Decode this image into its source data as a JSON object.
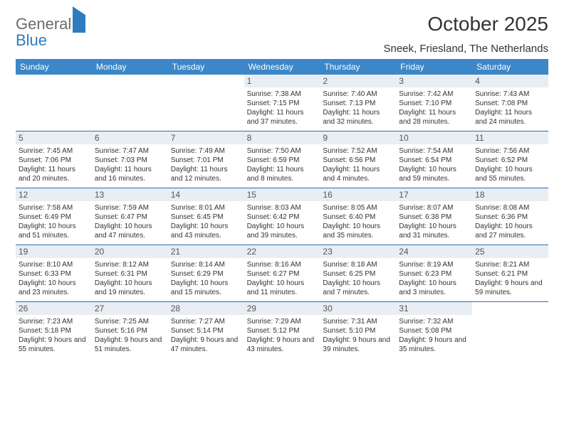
{
  "logo": {
    "line1": "General",
    "line2": "Blue"
  },
  "title": "October 2025",
  "location": "Sneek, Friesland, The Netherlands",
  "colors": {
    "header_bg": "#3b87c8",
    "header_text": "#ffffff",
    "daynum_bg": "#e8eef3",
    "week_border": "#2f6ea8",
    "logo_gray": "#6b6b6b",
    "logo_blue": "#2f7bbf"
  },
  "typography": {
    "title_fontsize": 28,
    "location_fontsize": 15,
    "dayheader_fontsize": 12,
    "daynum_fontsize": 12,
    "info_fontsize": 10
  },
  "day_names": [
    "Sunday",
    "Monday",
    "Tuesday",
    "Wednesday",
    "Thursday",
    "Friday",
    "Saturday"
  ],
  "weeks": [
    [
      {
        "n": "",
        "sunrise": "",
        "sunset": "",
        "daylight": ""
      },
      {
        "n": "",
        "sunrise": "",
        "sunset": "",
        "daylight": ""
      },
      {
        "n": "",
        "sunrise": "",
        "sunset": "",
        "daylight": ""
      },
      {
        "n": "1",
        "sunrise": "Sunrise: 7:38 AM",
        "sunset": "Sunset: 7:15 PM",
        "daylight": "Daylight: 11 hours and 37 minutes."
      },
      {
        "n": "2",
        "sunrise": "Sunrise: 7:40 AM",
        "sunset": "Sunset: 7:13 PM",
        "daylight": "Daylight: 11 hours and 32 minutes."
      },
      {
        "n": "3",
        "sunrise": "Sunrise: 7:42 AM",
        "sunset": "Sunset: 7:10 PM",
        "daylight": "Daylight: 11 hours and 28 minutes."
      },
      {
        "n": "4",
        "sunrise": "Sunrise: 7:43 AM",
        "sunset": "Sunset: 7:08 PM",
        "daylight": "Daylight: 11 hours and 24 minutes."
      }
    ],
    [
      {
        "n": "5",
        "sunrise": "Sunrise: 7:45 AM",
        "sunset": "Sunset: 7:06 PM",
        "daylight": "Daylight: 11 hours and 20 minutes."
      },
      {
        "n": "6",
        "sunrise": "Sunrise: 7:47 AM",
        "sunset": "Sunset: 7:03 PM",
        "daylight": "Daylight: 11 hours and 16 minutes."
      },
      {
        "n": "7",
        "sunrise": "Sunrise: 7:49 AM",
        "sunset": "Sunset: 7:01 PM",
        "daylight": "Daylight: 11 hours and 12 minutes."
      },
      {
        "n": "8",
        "sunrise": "Sunrise: 7:50 AM",
        "sunset": "Sunset: 6:59 PM",
        "daylight": "Daylight: 11 hours and 8 minutes."
      },
      {
        "n": "9",
        "sunrise": "Sunrise: 7:52 AM",
        "sunset": "Sunset: 6:56 PM",
        "daylight": "Daylight: 11 hours and 4 minutes."
      },
      {
        "n": "10",
        "sunrise": "Sunrise: 7:54 AM",
        "sunset": "Sunset: 6:54 PM",
        "daylight": "Daylight: 10 hours and 59 minutes."
      },
      {
        "n": "11",
        "sunrise": "Sunrise: 7:56 AM",
        "sunset": "Sunset: 6:52 PM",
        "daylight": "Daylight: 10 hours and 55 minutes."
      }
    ],
    [
      {
        "n": "12",
        "sunrise": "Sunrise: 7:58 AM",
        "sunset": "Sunset: 6:49 PM",
        "daylight": "Daylight: 10 hours and 51 minutes."
      },
      {
        "n": "13",
        "sunrise": "Sunrise: 7:59 AM",
        "sunset": "Sunset: 6:47 PM",
        "daylight": "Daylight: 10 hours and 47 minutes."
      },
      {
        "n": "14",
        "sunrise": "Sunrise: 8:01 AM",
        "sunset": "Sunset: 6:45 PM",
        "daylight": "Daylight: 10 hours and 43 minutes."
      },
      {
        "n": "15",
        "sunrise": "Sunrise: 8:03 AM",
        "sunset": "Sunset: 6:42 PM",
        "daylight": "Daylight: 10 hours and 39 minutes."
      },
      {
        "n": "16",
        "sunrise": "Sunrise: 8:05 AM",
        "sunset": "Sunset: 6:40 PM",
        "daylight": "Daylight: 10 hours and 35 minutes."
      },
      {
        "n": "17",
        "sunrise": "Sunrise: 8:07 AM",
        "sunset": "Sunset: 6:38 PM",
        "daylight": "Daylight: 10 hours and 31 minutes."
      },
      {
        "n": "18",
        "sunrise": "Sunrise: 8:08 AM",
        "sunset": "Sunset: 6:36 PM",
        "daylight": "Daylight: 10 hours and 27 minutes."
      }
    ],
    [
      {
        "n": "19",
        "sunrise": "Sunrise: 8:10 AM",
        "sunset": "Sunset: 6:33 PM",
        "daylight": "Daylight: 10 hours and 23 minutes."
      },
      {
        "n": "20",
        "sunrise": "Sunrise: 8:12 AM",
        "sunset": "Sunset: 6:31 PM",
        "daylight": "Daylight: 10 hours and 19 minutes."
      },
      {
        "n": "21",
        "sunrise": "Sunrise: 8:14 AM",
        "sunset": "Sunset: 6:29 PM",
        "daylight": "Daylight: 10 hours and 15 minutes."
      },
      {
        "n": "22",
        "sunrise": "Sunrise: 8:16 AM",
        "sunset": "Sunset: 6:27 PM",
        "daylight": "Daylight: 10 hours and 11 minutes."
      },
      {
        "n": "23",
        "sunrise": "Sunrise: 8:18 AM",
        "sunset": "Sunset: 6:25 PM",
        "daylight": "Daylight: 10 hours and 7 minutes."
      },
      {
        "n": "24",
        "sunrise": "Sunrise: 8:19 AM",
        "sunset": "Sunset: 6:23 PM",
        "daylight": "Daylight: 10 hours and 3 minutes."
      },
      {
        "n": "25",
        "sunrise": "Sunrise: 8:21 AM",
        "sunset": "Sunset: 6:21 PM",
        "daylight": "Daylight: 9 hours and 59 minutes."
      }
    ],
    [
      {
        "n": "26",
        "sunrise": "Sunrise: 7:23 AM",
        "sunset": "Sunset: 5:18 PM",
        "daylight": "Daylight: 9 hours and 55 minutes."
      },
      {
        "n": "27",
        "sunrise": "Sunrise: 7:25 AM",
        "sunset": "Sunset: 5:16 PM",
        "daylight": "Daylight: 9 hours and 51 minutes."
      },
      {
        "n": "28",
        "sunrise": "Sunrise: 7:27 AM",
        "sunset": "Sunset: 5:14 PM",
        "daylight": "Daylight: 9 hours and 47 minutes."
      },
      {
        "n": "29",
        "sunrise": "Sunrise: 7:29 AM",
        "sunset": "Sunset: 5:12 PM",
        "daylight": "Daylight: 9 hours and 43 minutes."
      },
      {
        "n": "30",
        "sunrise": "Sunrise: 7:31 AM",
        "sunset": "Sunset: 5:10 PM",
        "daylight": "Daylight: 9 hours and 39 minutes."
      },
      {
        "n": "31",
        "sunrise": "Sunrise: 7:32 AM",
        "sunset": "Sunset: 5:08 PM",
        "daylight": "Daylight: 9 hours and 35 minutes."
      },
      {
        "n": "",
        "sunrise": "",
        "sunset": "",
        "daylight": ""
      }
    ]
  ]
}
